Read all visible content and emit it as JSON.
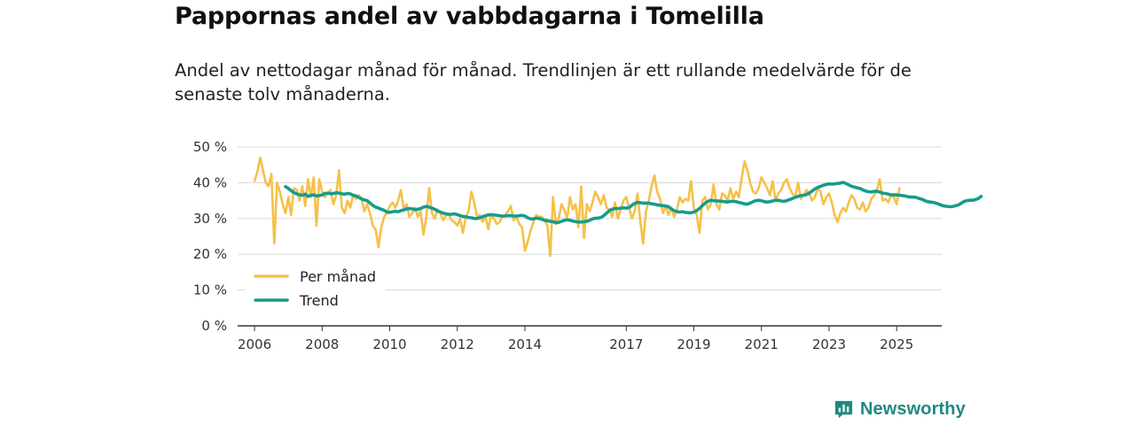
{
  "header": {
    "title": "Pappornas andel av vabbdagarna i Tomelilla",
    "subtitle": "Andel av nettodagar månad för månad. Trendlinjen är ett rullande medelvärde för de senaste tolv månaderna."
  },
  "branding": {
    "name": "Newsworthy",
    "color": "#1f8a7e"
  },
  "chart_data": {
    "type": "line",
    "title": "Pappornas andel av vabbdagarna i Tomelilla",
    "xlabel": "",
    "ylabel": "",
    "ylim": [
      0,
      50
    ],
    "y_ticks": [
      0,
      10,
      20,
      30,
      40,
      50
    ],
    "y_tick_labels": [
      "0 %",
      "10 %",
      "20 %",
      "30 %",
      "40 %",
      "50 %"
    ],
    "x_tick_years": [
      2006,
      2008,
      2010,
      2012,
      2014,
      2017,
      2019,
      2021,
      2023,
      2025
    ],
    "x_tick_labels": [
      "2006",
      "2008",
      "2010",
      "2012",
      "2014",
      "2017",
      "2019",
      "2021",
      "2023",
      "2025"
    ],
    "xlim": [
      "2005-07",
      "2026-05"
    ],
    "grid": true,
    "legend_position": "bottom-left",
    "series": [
      {
        "name": "Per månad",
        "color": "#f5c04a",
        "start": "2006-01",
        "values": [
          40.5,
          43.0,
          47.0,
          43.5,
          40.0,
          39.0,
          42.5,
          23.0,
          40.0,
          37.5,
          34.0,
          31.5,
          36.0,
          31.0,
          38.5,
          38.0,
          35.0,
          39.0,
          33.5,
          41.0,
          36.0,
          41.5,
          28.0,
          41.0,
          37.5,
          36.0,
          37.0,
          38.0,
          34.0,
          36.5,
          43.5,
          33.0,
          31.5,
          35.0,
          33.0,
          36.5,
          35.5,
          36.5,
          35.5,
          32.0,
          34.0,
          31.5,
          28.0,
          27.0,
          22.0,
          27.5,
          30.5,
          31.5,
          33.5,
          34.5,
          33.0,
          35.0,
          38.0,
          32.5,
          34.0,
          30.5,
          31.5,
          33.0,
          30.5,
          32.0,
          25.5,
          30.5,
          38.5,
          31.5,
          30.0,
          32.5,
          31.5,
          29.5,
          31.0,
          31.0,
          29.5,
          29.0,
          28.0,
          30.0,
          26.0,
          30.5,
          32.0,
          37.5,
          34.5,
          30.5,
          31.0,
          29.0,
          30.5,
          27.0,
          31.0,
          30.0,
          28.5,
          29.0,
          30.5,
          31.0,
          32.0,
          33.5,
          29.5,
          30.5,
          28.5,
          27.5,
          21.0,
          23.5,
          26.5,
          29.0,
          31.0,
          30.5,
          30.5,
          29.5,
          28.0,
          19.5,
          36.0,
          28.5,
          30.0,
          34.0,
          32.5,
          30.0,
          36.0,
          32.5,
          34.0,
          27.5,
          39.0,
          24.5,
          34.0,
          32.0,
          34.5,
          37.5,
          36.0,
          34.0,
          36.5,
          33.0,
          32.5,
          30.5,
          34.5,
          30.0,
          32.5,
          35.0,
          36.0,
          33.0,
          30.0,
          32.0,
          37.0,
          29.0,
          23.0,
          32.0,
          35.0,
          39.0,
          42.0,
          37.5,
          35.5,
          31.5,
          33.5,
          31.0,
          33.0,
          30.5,
          32.5,
          36.0,
          34.5,
          35.5,
          35.0,
          40.5,
          33.0,
          31.0,
          26.0,
          35.0,
          36.0,
          32.5,
          34.0,
          39.5,
          34.0,
          32.5,
          37.0,
          36.5,
          35.0,
          38.5,
          35.5,
          37.5,
          36.0,
          41.5,
          46.0,
          43.5,
          40.0,
          37.5,
          37.0,
          38.5,
          41.5,
          40.0,
          38.5,
          36.5,
          40.5,
          35.0,
          37.0,
          38.0,
          40.0,
          41.0,
          38.5,
          37.0,
          36.0,
          40.0,
          35.5,
          36.5,
          38.0,
          37.0,
          35.0,
          36.0,
          38.5,
          37.5,
          34.0,
          36.0,
          37.0,
          34.5,
          31.0,
          29.0,
          31.5,
          33.0,
          32.0,
          34.5,
          36.5,
          35.5,
          33.0,
          32.5,
          34.5,
          32.0,
          33.0,
          35.5,
          36.5,
          38.0,
          41.0,
          35.0,
          35.5,
          34.5,
          36.5,
          36.0,
          34.0,
          38.5
        ]
      },
      {
        "name": "Trend",
        "color": "#169c8b",
        "start": "2006-12",
        "values": [
          38.9,
          38.4,
          37.8,
          37.2,
          36.9,
          36.6,
          36.5,
          36.8,
          36.2,
          36.5,
          36.6,
          36.3,
          36.4,
          36.6,
          37.0,
          37.1,
          36.9,
          37.0,
          37.2,
          37.1,
          36.9,
          36.8,
          37.0,
          36.9,
          36.5,
          36.3,
          35.9,
          35.5,
          35.2,
          35.0,
          34.3,
          33.7,
          33.2,
          32.9,
          32.6,
          32.3,
          31.8,
          31.7,
          31.9,
          32.0,
          31.9,
          32.2,
          32.4,
          32.7,
          32.8,
          32.7,
          32.5,
          32.6,
          32.8,
          33.2,
          33.4,
          33.2,
          32.9,
          32.6,
          32.1,
          31.8,
          31.5,
          31.3,
          31.2,
          31.2,
          31.3,
          31.1,
          30.8,
          30.6,
          30.5,
          30.3,
          30.2,
          30.0,
          30.0,
          30.2,
          30.5,
          30.8,
          31.0,
          31.1,
          31.0,
          30.9,
          30.8,
          30.7,
          30.7,
          30.8,
          30.8,
          30.7,
          30.7,
          30.8,
          30.9,
          30.7,
          30.2,
          29.9,
          29.9,
          30.1,
          30.0,
          29.8,
          29.5,
          29.4,
          29.2,
          29.1,
          28.8,
          28.9,
          29.2,
          29.5,
          29.6,
          29.5,
          29.3,
          29.1,
          29.0,
          29.0,
          29.1,
          29.2,
          29.5,
          29.9,
          30.1,
          30.1,
          30.3,
          30.8,
          31.5,
          32.2,
          32.6,
          32.8,
          32.8,
          32.9,
          33.0,
          32.9,
          33.1,
          33.7,
          34.2,
          34.5,
          34.4,
          34.3,
          34.3,
          34.3,
          34.1,
          34.0,
          33.8,
          33.7,
          33.6,
          33.5,
          33.3,
          32.7,
          32.2,
          31.9,
          31.8,
          31.9,
          31.7,
          31.6,
          31.6,
          31.8,
          32.2,
          32.8,
          33.6,
          34.3,
          34.8,
          35.1,
          35.0,
          34.9,
          34.9,
          34.8,
          34.7,
          34.6,
          34.8,
          34.8,
          34.7,
          34.5,
          34.3,
          34.1,
          34.0,
          34.3,
          34.7,
          35.0,
          35.1,
          35.0,
          34.7,
          34.6,
          34.7,
          34.9,
          35.1,
          35.1,
          34.9,
          34.8,
          35.0,
          35.3,
          35.6,
          35.9,
          36.2,
          36.4,
          36.5,
          36.7,
          37.1,
          37.7,
          38.3,
          38.7,
          39.0,
          39.3,
          39.5,
          39.7,
          39.6,
          39.7,
          39.8,
          39.9,
          40.1,
          39.8,
          39.4,
          39.0,
          38.8,
          38.6,
          38.4,
          38.0,
          37.7,
          37.5,
          37.4,
          37.6,
          37.6,
          37.4,
          37.1,
          37.0,
          36.8,
          36.6,
          36.6,
          36.6,
          36.5,
          36.4,
          36.3,
          36.1,
          36.0,
          36.0,
          35.9,
          35.6,
          35.4,
          35.0,
          34.7,
          34.6,
          34.5,
          34.3,
          34.0,
          33.7,
          33.5,
          33.4,
          33.3,
          33.4,
          33.6,
          33.8,
          34.3,
          34.8,
          35.0,
          35.1,
          35.1,
          35.3,
          35.6,
          36.2
        ]
      }
    ]
  }
}
